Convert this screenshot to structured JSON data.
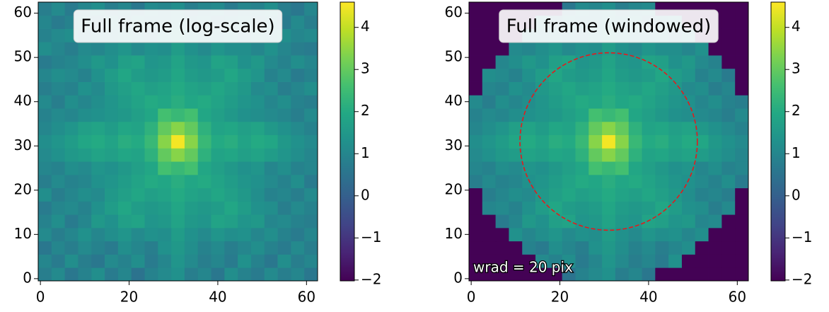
{
  "chart_data": [
    {
      "type": "heatmap",
      "title": "Full frame (log-scale)",
      "colormap": "viridis",
      "xbins": [
        -0.5,
        2.5,
        5.5,
        8.5,
        11.5,
        14.5,
        17.5,
        20.5,
        23.5,
        26.5,
        29.5,
        32.5,
        35.5,
        38.5,
        41.5,
        44.5,
        47.5,
        50.5,
        53.5,
        56.5,
        59.5,
        62.5
      ],
      "ybins": [
        -0.5,
        2.5,
        5.5,
        8.5,
        11.5,
        14.5,
        17.5,
        20.5,
        23.5,
        26.5,
        29.5,
        32.5,
        35.5,
        38.5,
        41.5,
        44.5,
        47.5,
        50.5,
        53.5,
        56.5,
        59.5,
        62.5
      ],
      "xlim": [
        -0.5,
        62.5
      ],
      "ylim": [
        -0.5,
        62.5
      ],
      "xticks": [
        0,
        20,
        40,
        60
      ],
      "yticks": [
        0,
        10,
        20,
        30,
        40,
        50,
        60
      ],
      "clim": [
        -2.02,
        4.6
      ],
      "colorbar_ticks": [
        {
          "value": -2,
          "label": "−2"
        },
        {
          "value": -1,
          "label": "−1"
        },
        0,
        1,
        2,
        3,
        4
      ],
      "values": [
        [
          0.8,
          1.1,
          0.6,
          0.9,
          1.2,
          0.7,
          1.0,
          0.5,
          0.9,
          1.1,
          1.3,
          0.8,
          1.0,
          0.6,
          1.2,
          0.9,
          0.7,
          1.1,
          0.8,
          1.0,
          0.6
        ],
        [
          1.0,
          0.7,
          1.2,
          0.8,
          0.6,
          1.1,
          0.9,
          1.2,
          0.7,
          1.0,
          1.4,
          1.1,
          0.8,
          1.0,
          0.7,
          1.3,
          0.9,
          0.6,
          1.2,
          0.8,
          1.0
        ],
        [
          0.6,
          1.0,
          0.8,
          1.1,
          0.9,
          0.7,
          1.2,
          1.0,
          0.8,
          1.3,
          1.5,
          1.2,
          0.9,
          1.1,
          0.8,
          1.0,
          1.2,
          0.9,
          0.7,
          1.1,
          0.8
        ],
        [
          1.1,
          0.8,
          1.0,
          1.3,
          1.0,
          1.2,
          1.4,
          1.1,
          1.3,
          1.2,
          1.6,
          1.3,
          1.1,
          1.4,
          1.2,
          1.3,
          1.0,
          1.2,
          0.9,
          0.7,
          1.0
        ],
        [
          0.9,
          1.2,
          0.7,
          1.0,
          1.5,
          1.3,
          1.7,
          1.8,
          1.4,
          1.5,
          1.8,
          1.5,
          1.4,
          1.8,
          1.7,
          1.4,
          1.5,
          1.0,
          1.1,
          0.9,
          0.8
        ],
        [
          0.7,
          1.0,
          1.1,
          0.9,
          1.3,
          1.6,
          1.9,
          1.6,
          1.5,
          1.6,
          1.9,
          1.6,
          1.5,
          1.6,
          1.9,
          1.6,
          1.3,
          1.2,
          0.8,
          1.1,
          0.9
        ],
        [
          1.2,
          0.8,
          1.0,
          1.2,
          1.1,
          1.5,
          1.7,
          1.9,
          1.7,
          1.8,
          2.0,
          1.8,
          1.7,
          1.9,
          1.7,
          1.5,
          1.2,
          0.9,
          1.0,
          0.8,
          1.1
        ],
        [
          0.8,
          1.1,
          0.9,
          1.0,
          1.3,
          1.4,
          1.6,
          1.8,
          2.0,
          1.9,
          2.1,
          1.9,
          2.0,
          1.8,
          1.6,
          1.4,
          1.3,
          1.1,
          0.9,
          1.2,
          0.7
        ],
        [
          1.0,
          0.9,
          1.2,
          1.1,
          1.4,
          1.3,
          1.5,
          1.7,
          1.9,
          2.6,
          2.4,
          2.6,
          1.9,
          1.7,
          1.5,
          1.3,
          1.4,
          1.0,
          1.2,
          0.9,
          1.0
        ],
        [
          1.1,
          1.3,
          1.5,
          1.6,
          1.8,
          1.7,
          1.9,
          1.8,
          2.2,
          3.0,
          3.4,
          3.0,
          2.2,
          1.8,
          1.9,
          1.7,
          1.8,
          1.6,
          1.4,
          1.2,
          1.0
        ],
        [
          1.2,
          1.4,
          1.6,
          1.9,
          2.0,
          1.8,
          2.1,
          2.0,
          2.4,
          3.4,
          4.5,
          3.4,
          2.4,
          2.0,
          2.1,
          1.8,
          2.0,
          1.9,
          1.5,
          1.3,
          1.1
        ],
        [
          1.0,
          1.2,
          1.4,
          1.7,
          1.8,
          1.6,
          1.9,
          1.8,
          2.2,
          3.0,
          3.4,
          3.0,
          2.2,
          1.8,
          1.9,
          1.7,
          1.8,
          1.5,
          1.3,
          1.1,
          0.9
        ],
        [
          0.9,
          1.1,
          1.0,
          1.2,
          1.3,
          1.4,
          1.5,
          1.7,
          1.9,
          2.6,
          2.4,
          2.6,
          1.9,
          1.7,
          1.5,
          1.3,
          1.2,
          1.1,
          1.0,
          0.8,
          1.1
        ],
        [
          1.1,
          0.8,
          1.2,
          1.0,
          1.2,
          1.4,
          1.6,
          1.8,
          2.0,
          1.9,
          2.1,
          1.9,
          2.0,
          1.8,
          1.6,
          1.4,
          1.3,
          1.0,
          1.2,
          0.9,
          0.8
        ],
        [
          0.8,
          1.0,
          0.9,
          1.3,
          1.1,
          1.5,
          1.7,
          1.9,
          1.7,
          1.8,
          2.0,
          1.8,
          1.7,
          1.9,
          1.7,
          1.5,
          1.1,
          1.2,
          0.8,
          1.0,
          1.2
        ],
        [
          1.0,
          1.2,
          1.1,
          0.9,
          1.3,
          1.6,
          1.9,
          1.6,
          1.5,
          1.6,
          1.9,
          1.6,
          1.5,
          1.6,
          1.9,
          1.6,
          1.4,
          0.9,
          1.1,
          0.7,
          0.9
        ],
        [
          0.7,
          0.9,
          1.0,
          1.2,
          1.5,
          1.3,
          1.7,
          1.8,
          1.4,
          1.5,
          1.8,
          1.5,
          1.4,
          1.8,
          1.7,
          1.3,
          1.5,
          1.1,
          0.9,
          1.2,
          1.0
        ],
        [
          1.2,
          1.0,
          0.8,
          1.1,
          1.0,
          1.2,
          1.4,
          1.1,
          1.3,
          1.2,
          1.6,
          1.3,
          1.1,
          1.4,
          1.2,
          1.2,
          1.0,
          1.3,
          1.0,
          0.8,
          0.7
        ],
        [
          0.9,
          1.1,
          1.2,
          0.7,
          1.0,
          0.9,
          1.1,
          1.0,
          0.8,
          1.2,
          1.5,
          1.1,
          0.9,
          1.0,
          1.2,
          0.8,
          1.1,
          0.9,
          1.2,
          1.0,
          1.1
        ],
        [
          1.0,
          0.7,
          0.9,
          1.1,
          0.8,
          1.2,
          0.7,
          1.1,
          1.0,
          0.9,
          1.3,
          1.0,
          1.2,
          0.7,
          0.9,
          1.1,
          0.8,
          1.0,
          0.7,
          1.1,
          0.8
        ],
        [
          0.8,
          1.1,
          0.7,
          1.0,
          1.2,
          0.8,
          1.0,
          0.6,
          1.1,
          1.0,
          1.2,
          0.8,
          1.0,
          1.1,
          0.7,
          1.0,
          0.9,
          1.2,
          0.8,
          0.6,
          1.0
        ]
      ]
    },
    {
      "type": "heatmap",
      "title": "Full frame (windowed)",
      "colormap": "viridis",
      "annotation": "wrad = 20 pix",
      "circle": {
        "center": [
          31,
          31
        ],
        "radius": 20,
        "color": "#e41a1c"
      },
      "xbins": [
        -0.5,
        2.5,
        5.5,
        8.5,
        11.5,
        14.5,
        17.5,
        20.5,
        23.5,
        26.5,
        29.5,
        32.5,
        35.5,
        38.5,
        41.5,
        44.5,
        47.5,
        50.5,
        53.5,
        56.5,
        59.5,
        62.5
      ],
      "ybins": [
        -0.5,
        2.5,
        5.5,
        8.5,
        11.5,
        14.5,
        17.5,
        20.5,
        23.5,
        26.5,
        29.5,
        32.5,
        35.5,
        38.5,
        41.5,
        44.5,
        47.5,
        50.5,
        53.5,
        56.5,
        59.5,
        62.5
      ],
      "xlim": [
        -0.5,
        62.5
      ],
      "ylim": [
        -0.5,
        62.5
      ],
      "xticks": [
        0,
        20,
        40,
        60
      ],
      "yticks": [
        0,
        10,
        20,
        30,
        40,
        50,
        60
      ],
      "clim": [
        -2.02,
        4.6
      ],
      "colorbar_ticks": [
        {
          "value": -2,
          "label": "−2"
        },
        {
          "value": -1,
          "label": "−1"
        },
        0,
        1,
        2,
        3,
        4
      ],
      "values": [
        [
          -2,
          -2,
          -2,
          -2,
          -2,
          -2,
          -2,
          0.5,
          0.9,
          1.1,
          1.3,
          0.8,
          1.0,
          0.6,
          -2,
          -2,
          -2,
          -2,
          -2,
          -2,
          -2
        ],
        [
          -2,
          -2,
          -2,
          -2,
          -2,
          1.1,
          0.9,
          1.2,
          0.7,
          1.0,
          1.4,
          1.1,
          0.8,
          1.0,
          0.7,
          1.3,
          -2,
          -2,
          -2,
          -2,
          -2
        ],
        [
          -2,
          -2,
          -2,
          -2,
          0.9,
          0.7,
          1.2,
          1.0,
          0.8,
          1.3,
          1.5,
          1.2,
          0.9,
          1.1,
          0.8,
          1.0,
          1.2,
          -2,
          -2,
          -2,
          -2
        ],
        [
          -2,
          -2,
          -2,
          1.3,
          1.0,
          1.2,
          1.4,
          1.1,
          1.3,
          1.2,
          1.6,
          1.3,
          1.1,
          1.4,
          1.2,
          1.3,
          1.0,
          1.2,
          -2,
          -2,
          -2
        ],
        [
          -2,
          -2,
          0.7,
          1.0,
          1.5,
          1.3,
          1.7,
          1.8,
          1.4,
          1.5,
          1.8,
          1.5,
          1.4,
          1.8,
          1.7,
          1.4,
          1.5,
          1.0,
          1.1,
          -2,
          -2
        ],
        [
          -2,
          1.0,
          1.1,
          0.9,
          1.3,
          1.6,
          1.9,
          1.6,
          1.5,
          1.6,
          1.9,
          1.6,
          1.5,
          1.6,
          1.9,
          1.6,
          1.3,
          1.2,
          0.8,
          1.1,
          -2
        ],
        [
          -2,
          0.8,
          1.0,
          1.2,
          1.1,
          1.5,
          1.7,
          1.9,
          1.7,
          1.8,
          2.0,
          1.8,
          1.7,
          1.9,
          1.7,
          1.5,
          1.2,
          0.9,
          1.0,
          0.8,
          -2
        ],
        [
          0.8,
          1.1,
          0.9,
          1.0,
          1.3,
          1.4,
          1.6,
          1.8,
          2.0,
          1.9,
          2.1,
          1.9,
          2.0,
          1.8,
          1.6,
          1.4,
          1.3,
          1.1,
          0.9,
          1.2,
          0.7
        ],
        [
          1.0,
          0.9,
          1.2,
          1.1,
          1.4,
          1.3,
          1.5,
          1.7,
          1.9,
          2.6,
          2.4,
          2.6,
          1.9,
          1.7,
          1.5,
          1.3,
          1.4,
          1.0,
          1.2,
          0.9,
          1.0
        ],
        [
          1.1,
          1.3,
          1.5,
          1.6,
          1.8,
          1.7,
          1.9,
          1.8,
          2.2,
          3.0,
          3.4,
          3.0,
          2.2,
          1.8,
          1.9,
          1.7,
          1.8,
          1.6,
          1.4,
          1.2,
          1.0
        ],
        [
          1.2,
          1.4,
          1.6,
          1.9,
          2.0,
          1.8,
          2.1,
          2.0,
          2.4,
          3.4,
          4.5,
          3.4,
          2.4,
          2.0,
          2.1,
          1.8,
          2.0,
          1.9,
          1.5,
          1.3,
          1.1
        ],
        [
          1.0,
          1.2,
          1.4,
          1.7,
          1.8,
          1.6,
          1.9,
          1.8,
          2.2,
          3.0,
          3.4,
          3.0,
          2.2,
          1.8,
          1.9,
          1.7,
          1.8,
          1.5,
          1.3,
          1.1,
          0.9
        ],
        [
          0.9,
          1.1,
          1.0,
          1.2,
          1.3,
          1.4,
          1.5,
          1.7,
          1.9,
          2.6,
          2.4,
          2.6,
          1.9,
          1.7,
          1.5,
          1.3,
          1.2,
          1.1,
          1.0,
          0.8,
          1.1
        ],
        [
          1.1,
          0.8,
          1.2,
          1.0,
          1.2,
          1.4,
          1.6,
          1.8,
          2.0,
          1.9,
          2.1,
          1.9,
          2.0,
          1.8,
          1.6,
          1.4,
          1.3,
          1.0,
          1.2,
          0.9,
          0.8
        ],
        [
          -2,
          1.0,
          0.9,
          1.3,
          1.1,
          1.5,
          1.7,
          1.9,
          1.7,
          1.8,
          2.0,
          1.8,
          1.7,
          1.9,
          1.7,
          1.5,
          1.1,
          1.2,
          0.8,
          1.0,
          -2
        ],
        [
          -2,
          1.2,
          1.1,
          0.9,
          1.3,
          1.6,
          1.9,
          1.6,
          1.5,
          1.6,
          1.9,
          1.6,
          1.5,
          1.6,
          1.9,
          1.6,
          1.4,
          0.9,
          1.1,
          0.7,
          -2
        ],
        [
          -2,
          -2,
          1.0,
          1.2,
          1.5,
          1.3,
          1.7,
          1.8,
          1.4,
          1.5,
          1.8,
          1.5,
          1.4,
          1.8,
          1.7,
          1.3,
          1.5,
          1.1,
          0.9,
          -2,
          -2
        ],
        [
          -2,
          -2,
          -2,
          1.1,
          1.0,
          1.2,
          1.4,
          1.1,
          1.3,
          1.2,
          1.6,
          1.3,
          1.1,
          1.4,
          1.2,
          1.2,
          1.0,
          1.3,
          -2,
          -2,
          -2
        ],
        [
          -2,
          -2,
          -2,
          -2,
          1.0,
          0.9,
          1.1,
          1.0,
          0.8,
          1.2,
          1.5,
          1.1,
          0.9,
          1.0,
          1.2,
          0.8,
          1.1,
          -2,
          -2,
          -2,
          -2
        ],
        [
          -2,
          -2,
          -2,
          -2,
          -2,
          1.2,
          0.7,
          1.1,
          1.0,
          0.9,
          1.3,
          1.0,
          1.2,
          0.7,
          0.9,
          1.1,
          -2,
          -2,
          -2,
          -2,
          -2
        ],
        [
          -2,
          -2,
          -2,
          -2,
          -2,
          -2,
          -2,
          0.6,
          1.1,
          1.0,
          1.2,
          0.8,
          1.0,
          1.1,
          -2,
          -2,
          -2,
          -2,
          -2,
          -2,
          -2
        ]
      ]
    }
  ]
}
